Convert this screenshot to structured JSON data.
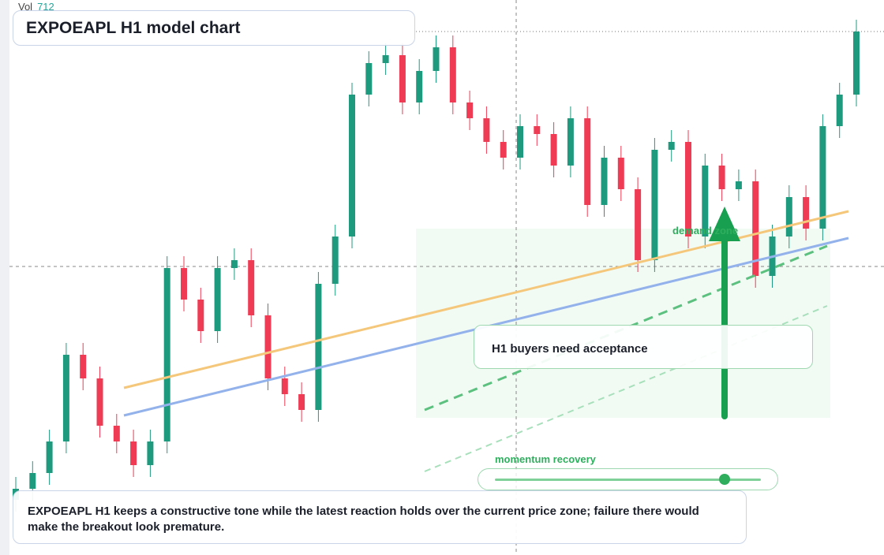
{
  "chart_data": {
    "type": "candlestick",
    "title": "EXPOEAPL H1 model chart",
    "volume_label": "Vol",
    "volume_value": 712,
    "annotations": [
      "H1 buyers need acceptance",
      "demand zone",
      "momentum recovery"
    ],
    "note": "EXPOEAPL H1 keeps a constructive tone while the latest reaction holds over the current price zone; failure there would make the breakout look premature.",
    "ylim": [
      0,
      704
    ],
    "up_color": "#1e9b7f",
    "down_color": "#ef3b54",
    "open": [
      70,
      84,
      104,
      144,
      254,
      224,
      164,
      144,
      114,
      144,
      364,
      324,
      284,
      364,
      374,
      304,
      224,
      204,
      184,
      344,
      404,
      584,
      624,
      634,
      574,
      614,
      644,
      574,
      554,
      524,
      504,
      544,
      534,
      494,
      554,
      444,
      504,
      464,
      374,
      514,
      524,
      404,
      494,
      464,
      474,
      354,
      404,
      454,
      414,
      544,
      584
    ],
    "high": [
      99,
      119,
      159,
      269,
      269,
      239,
      179,
      159,
      159,
      379,
      379,
      339,
      379,
      389,
      389,
      319,
      239,
      219,
      359,
      419,
      599,
      639,
      649,
      649,
      629,
      659,
      659,
      589,
      569,
      539,
      559,
      559,
      549,
      569,
      569,
      519,
      519,
      479,
      529,
      539,
      539,
      509,
      509,
      489,
      489,
      419,
      469,
      469,
      559,
      599,
      679
    ],
    "low": [
      55,
      69,
      89,
      129,
      209,
      149,
      129,
      99,
      99,
      129,
      309,
      269,
      269,
      349,
      289,
      209,
      189,
      169,
      169,
      329,
      389,
      569,
      609,
      559,
      559,
      599,
      559,
      539,
      509,
      489,
      489,
      519,
      479,
      479,
      429,
      429,
      449,
      359,
      359,
      499,
      389,
      389,
      449,
      449,
      339,
      339,
      389,
      399,
      399,
      529,
      569
    ],
    "close": [
      84,
      104,
      144,
      254,
      224,
      164,
      144,
      114,
      144,
      364,
      324,
      284,
      364,
      374,
      304,
      224,
      204,
      184,
      344,
      404,
      584,
      624,
      634,
      574,
      614,
      644,
      574,
      554,
      524,
      504,
      544,
      534,
      494,
      554,
      444,
      504,
      464,
      374,
      514,
      524,
      404,
      494,
      464,
      474,
      354,
      404,
      454,
      414,
      544,
      584,
      664
    ]
  }
}
